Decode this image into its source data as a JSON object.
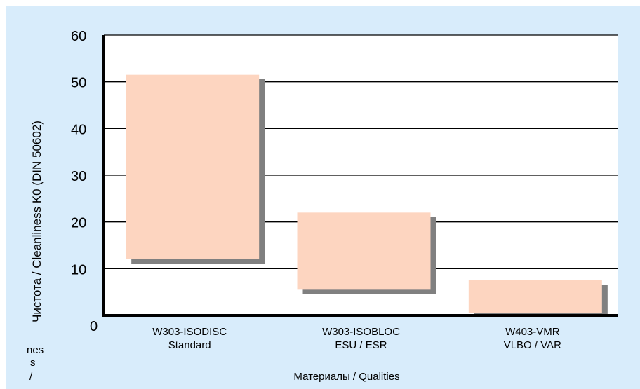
{
  "chart_data": {
    "type": "bar",
    "title": "",
    "xlabel": "Материалы / Qualities",
    "ylabel": "Чистота / Cleanliness K0 (DIN 50602)",
    "ylabel_overflow": [
      "nes",
      "s",
      "/"
    ],
    "ylim": [
      0,
      60
    ],
    "yticks": [
      0,
      10,
      20,
      30,
      40,
      50,
      60
    ],
    "grid": true,
    "legend": "none",
    "categories": [
      [
        "W303-ISODISC",
        "Standard"
      ],
      [
        "W303-ISOBLOC",
        "ESU / ESR"
      ],
      [
        "W403-VMR",
        "VLBO / VAR"
      ]
    ],
    "series": [
      {
        "ranges": [
          [
            12,
            51.5
          ],
          [
            5.5,
            22
          ],
          [
            0,
            7.5
          ]
        ],
        "color": "#fdd5c0"
      }
    ],
    "colors": {
      "background": "#d8ecfb",
      "plot": "#ffffff",
      "bar": "#fdd5c0",
      "shadow": "#808080",
      "axis": "#000000"
    }
  }
}
